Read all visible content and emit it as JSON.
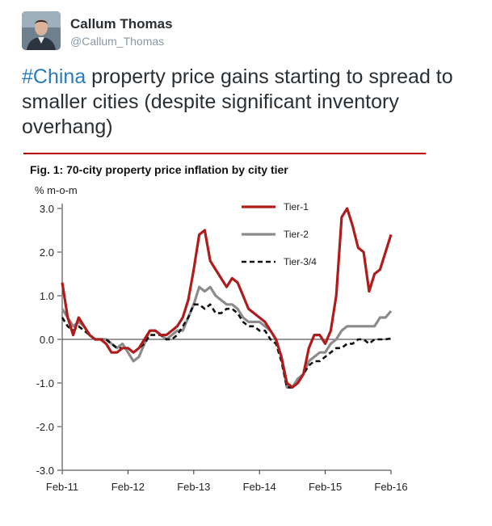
{
  "tweet": {
    "display_name": "Callum Thomas",
    "handle": "@Callum_Thomas",
    "hashtag": "#China",
    "text": " property price gains starting to spread to smaller cities (despite significant inventory overhang)",
    "colors": {
      "hashtag": "#2b7bb9",
      "divider": "#c00000"
    }
  },
  "chart_data": {
    "type": "line",
    "title": "Fig. 1: 70-city property price inflation by city tier",
    "ylabel": "% m-o-m",
    "xlabel": "",
    "ylim": [
      -3.0,
      3.0
    ],
    "yticks": [
      "3.0",
      "2.0",
      "1.0",
      "0.0",
      "-1.0",
      "-2.0",
      "-3.0"
    ],
    "ytick_values": [
      3.0,
      2.0,
      1.0,
      0.0,
      -1.0,
      -2.0,
      -3.0
    ],
    "xticks": [
      "Feb-11",
      "Feb-12",
      "Feb-13",
      "Feb-14",
      "Feb-15",
      "Feb-16"
    ],
    "xtick_index": [
      0,
      12,
      24,
      36,
      48,
      60
    ],
    "x_count": 61,
    "legend_position": "top-right",
    "series": [
      {
        "name": "Tier-1",
        "color": "#b01c1c",
        "style": "solid",
        "values": [
          1.3,
          0.5,
          0.1,
          0.5,
          0.3,
          0.1,
          0.0,
          0.0,
          -0.1,
          -0.3,
          -0.3,
          -0.2,
          -0.2,
          -0.3,
          -0.2,
          0.0,
          0.2,
          0.2,
          0.1,
          0.1,
          0.2,
          0.3,
          0.5,
          0.9,
          1.6,
          2.4,
          2.5,
          1.8,
          1.6,
          1.4,
          1.2,
          1.4,
          1.3,
          1.0,
          0.7,
          0.6,
          0.5,
          0.4,
          0.2,
          0.0,
          -0.4,
          -1.0,
          -1.1,
          -1.0,
          -0.8,
          -0.2,
          0.1,
          0.1,
          -0.1,
          0.2,
          1.0,
          2.8,
          3.0,
          2.6,
          2.1,
          2.0,
          1.1,
          1.5,
          1.6,
          2.0,
          2.4
        ]
      },
      {
        "name": "Tier-2",
        "color": "#8c8c8c",
        "style": "solid",
        "values": [
          0.7,
          0.5,
          0.3,
          0.4,
          0.3,
          0.1,
          0.0,
          0.0,
          0.0,
          -0.1,
          -0.2,
          -0.1,
          -0.3,
          -0.5,
          -0.4,
          -0.1,
          0.2,
          0.2,
          0.1,
          0.0,
          0.1,
          0.2,
          0.2,
          0.5,
          0.8,
          1.2,
          1.1,
          1.2,
          1.0,
          0.9,
          0.8,
          0.8,
          0.7,
          0.5,
          0.4,
          0.4,
          0.4,
          0.3,
          0.2,
          0.0,
          -0.4,
          -1.1,
          -1.1,
          -0.9,
          -0.8,
          -0.5,
          -0.4,
          -0.3,
          -0.3,
          -0.1,
          0.0,
          0.2,
          0.3,
          0.3,
          0.3,
          0.3,
          0.3,
          0.3,
          0.5,
          0.5,
          0.65
        ]
      },
      {
        "name": "Tier-3/4",
        "color": "#111111",
        "style": "dashed",
        "values": [
          0.5,
          0.3,
          0.2,
          0.3,
          0.2,
          0.1,
          0.0,
          0.0,
          0.0,
          -0.1,
          -0.2,
          -0.2,
          -0.2,
          -0.3,
          -0.2,
          -0.1,
          0.1,
          0.1,
          0.1,
          0.0,
          0.0,
          0.1,
          0.3,
          0.5,
          0.8,
          0.8,
          0.7,
          0.8,
          0.6,
          0.6,
          0.7,
          0.7,
          0.6,
          0.4,
          0.3,
          0.3,
          0.2,
          0.2,
          0.0,
          -0.1,
          -0.5,
          -1.1,
          -1.1,
          -1.0,
          -0.8,
          -0.6,
          -0.5,
          -0.5,
          -0.4,
          -0.3,
          -0.2,
          -0.2,
          -0.1,
          -0.1,
          0.0,
          0.0,
          -0.1,
          0.0,
          0.0,
          0.0,
          0.02
        ]
      }
    ]
  }
}
